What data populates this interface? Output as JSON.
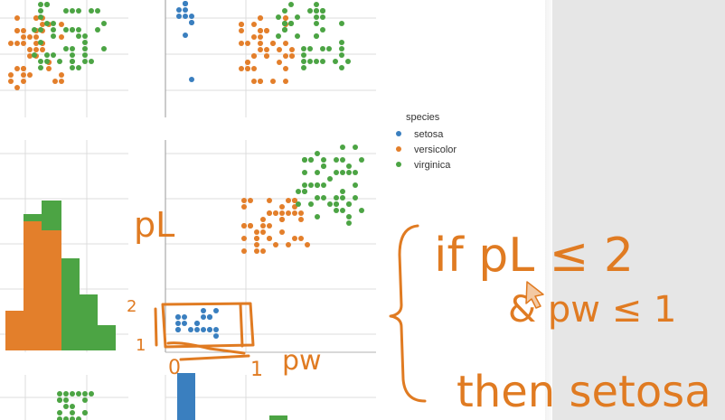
{
  "legend": {
    "title": "species",
    "items": [
      {
        "label": "setosa",
        "color": "#3a7fbf"
      },
      {
        "label": "versicolor",
        "color": "#e37f2b"
      },
      {
        "label": "virginica",
        "color": "#4ca444"
      }
    ]
  },
  "annotations": {
    "left_axis_label": "pL",
    "y_mark_2": "2",
    "y_mark_1": "1",
    "x_mark_0": "0",
    "x_mark_1": "1",
    "x_axis_label": "pw",
    "rule_line1": "if  pL ≤ 2",
    "rule_line2": "& pw ≤ 1",
    "rule_line3": "then  setosa",
    "ink_color": "#e07b22"
  },
  "colors": {
    "setosa": "#3a7fbf",
    "versicolor": "#e37f2b",
    "virginica": "#4ca444",
    "grid": "#dcdcdc",
    "panel_gray": "#e6e6e6"
  }
}
